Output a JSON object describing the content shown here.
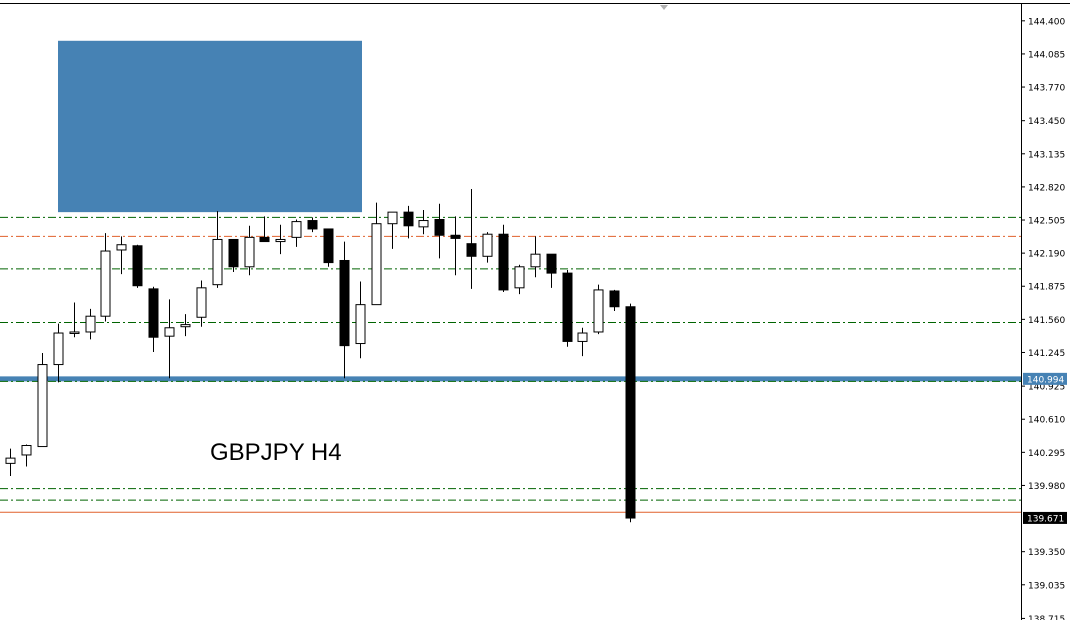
{
  "chart_data": {
    "type": "candlestick",
    "title": "GBPJPY H4",
    "ylim": [
      138.7,
      144.56
    ],
    "y_ticks": [
      "144.400",
      "144.085",
      "143.770",
      "143.450",
      "143.135",
      "142.820",
      "142.505",
      "142.190",
      "141.875",
      "141.560",
      "141.245",
      "140.925",
      "140.610",
      "140.295",
      "139.980",
      "139.350",
      "139.035",
      "138.715"
    ],
    "candles": [
      {
        "o": 140.19,
        "h": 140.33,
        "l": 140.07,
        "c": 140.24
      },
      {
        "o": 140.27,
        "h": 140.37,
        "l": 140.16,
        "c": 140.36
      },
      {
        "o": 140.35,
        "h": 141.24,
        "l": 140.35,
        "c": 141.13
      },
      {
        "o": 141.13,
        "h": 141.52,
        "l": 140.96,
        "c": 141.43
      },
      {
        "o": 141.44,
        "h": 141.72,
        "l": 141.39,
        "c": 141.44
      },
      {
        "o": 141.44,
        "h": 141.66,
        "l": 141.37,
        "c": 141.59
      },
      {
        "o": 141.59,
        "h": 142.38,
        "l": 141.54,
        "c": 142.21
      },
      {
        "o": 142.22,
        "h": 142.35,
        "l": 141.99,
        "c": 142.27
      },
      {
        "o": 142.26,
        "h": 142.27,
        "l": 141.86,
        "c": 141.88
      },
      {
        "o": 141.85,
        "h": 141.87,
        "l": 141.25,
        "c": 141.39
      },
      {
        "o": 141.4,
        "h": 141.75,
        "l": 141.0,
        "c": 141.48
      },
      {
        "o": 141.49,
        "h": 141.61,
        "l": 141.4,
        "c": 141.51
      },
      {
        "o": 141.58,
        "h": 141.93,
        "l": 141.49,
        "c": 141.86
      },
      {
        "o": 141.89,
        "h": 142.59,
        "l": 141.86,
        "c": 142.32
      },
      {
        "o": 142.32,
        "h": 142.3,
        "l": 142.01,
        "c": 142.06
      },
      {
        "o": 142.06,
        "h": 142.45,
        "l": 141.98,
        "c": 142.34
      },
      {
        "o": 142.34,
        "h": 142.54,
        "l": 142.3,
        "c": 142.3
      },
      {
        "o": 142.3,
        "h": 142.46,
        "l": 142.18,
        "c": 142.32
      },
      {
        "o": 142.34,
        "h": 142.51,
        "l": 142.25,
        "c": 142.49
      },
      {
        "o": 142.5,
        "h": 142.53,
        "l": 142.39,
        "c": 142.42
      },
      {
        "o": 142.42,
        "h": 142.42,
        "l": 142.06,
        "c": 142.1
      },
      {
        "o": 142.12,
        "h": 142.3,
        "l": 141.0,
        "c": 141.31
      },
      {
        "o": 141.33,
        "h": 141.92,
        "l": 141.19,
        "c": 141.7
      },
      {
        "o": 141.7,
        "h": 142.67,
        "l": 141.7,
        "c": 142.47
      },
      {
        "o": 142.47,
        "h": 142.58,
        "l": 142.23,
        "c": 142.58
      },
      {
        "o": 142.58,
        "h": 142.64,
        "l": 142.33,
        "c": 142.45
      },
      {
        "o": 142.44,
        "h": 142.6,
        "l": 142.37,
        "c": 142.5
      },
      {
        "o": 142.51,
        "h": 142.66,
        "l": 142.14,
        "c": 142.36
      },
      {
        "o": 142.36,
        "h": 142.54,
        "l": 141.98,
        "c": 142.33
      },
      {
        "o": 142.28,
        "h": 142.8,
        "l": 141.85,
        "c": 142.16
      },
      {
        "o": 142.16,
        "h": 142.39,
        "l": 142.1,
        "c": 142.37
      },
      {
        "o": 142.37,
        "h": 142.46,
        "l": 141.82,
        "c": 141.84
      },
      {
        "o": 141.86,
        "h": 142.08,
        "l": 141.8,
        "c": 142.06
      },
      {
        "o": 142.06,
        "h": 142.35,
        "l": 141.96,
        "c": 142.18
      },
      {
        "o": 142.18,
        "h": 142.18,
        "l": 141.86,
        "c": 142.0
      },
      {
        "o": 142.0,
        "h": 142.03,
        "l": 141.3,
        "c": 141.35
      },
      {
        "o": 141.35,
        "h": 141.48,
        "l": 141.21,
        "c": 141.43
      },
      {
        "o": 141.44,
        "h": 141.89,
        "l": 141.42,
        "c": 141.84
      },
      {
        "o": 141.83,
        "h": 141.84,
        "l": 141.64,
        "c": 141.68
      },
      {
        "o": 141.68,
        "h": 141.71,
        "l": 139.63,
        "c": 139.67
      }
    ],
    "horizontal_lines": [
      {
        "value": 142.53,
        "color": "#006400",
        "style": "dashdot"
      },
      {
        "value": 142.35,
        "color": "#e0602c",
        "style": "dashdot"
      },
      {
        "value": 142.04,
        "color": "#006400",
        "style": "dashdot"
      },
      {
        "value": 141.53,
        "color": "#006400",
        "style": "dashdot"
      },
      {
        "value": 140.994,
        "color": "#4682b4",
        "style": "solid-thick"
      },
      {
        "value": 140.97,
        "color": "#006400",
        "style": "dashdot"
      },
      {
        "value": 139.95,
        "color": "#006400",
        "style": "dashdot"
      },
      {
        "value": 139.84,
        "color": "#006400",
        "style": "dashdot"
      },
      {
        "value": 139.725,
        "color": "#e0602c",
        "style": "solid"
      }
    ],
    "zone": {
      "y_from": 142.58,
      "y_to": 144.21,
      "color": "#4682b4"
    },
    "price_tags": [
      {
        "label": "140.994",
        "value": 140.994,
        "bg": "#4682b4"
      },
      {
        "label": "139.671",
        "value": 139.671,
        "bg": "#000000"
      }
    ],
    "bull_color": "#ffffff",
    "bear_color": "#000000"
  }
}
